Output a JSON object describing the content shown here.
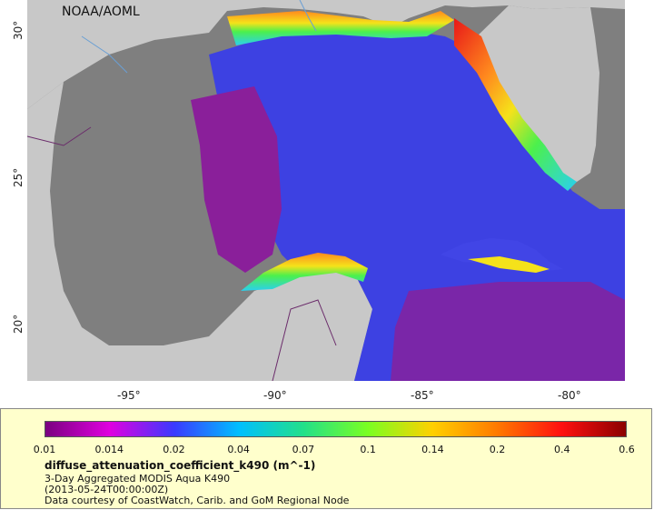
{
  "map": {
    "source_label": "NOAA/AOML",
    "y_ticks": [
      "30°",
      "25°",
      "20°"
    ],
    "x_ticks": [
      "-95°",
      "-90°",
      "-85°",
      "-80°"
    ],
    "colors": {
      "land": "#c8c8c8",
      "no_data_water": "#7f7f7f",
      "deep_ocean_purple": "#8a1f9a",
      "blue": "#3a3ee8",
      "cyan": "#2ad0f0",
      "green": "#4cf04c",
      "yellow": "#f5e21a",
      "orange": "#ff8a1e",
      "red": "#e81818",
      "river": "#6a9fd4",
      "border": "#6b2c6b"
    }
  },
  "legend": {
    "scale_labels": [
      "0.01",
      "0.014",
      "0.02",
      "0.04",
      "0.07",
      "0.1",
      "0.14",
      "0.2",
      "0.4",
      "0.6"
    ],
    "gradient_colors": [
      "#7a0080",
      "#e000e0",
      "#3a3aff",
      "#00bfff",
      "#22e08a",
      "#7aff22",
      "#ffd000",
      "#ff7a00",
      "#ff1010",
      "#8b0000"
    ],
    "title": "diffuse_attenuation_coefficient_k490 (m^-1)",
    "line1": "3-Day Aggregated MODIS Aqua K490",
    "line2": "(2013-05-24T00:00:00Z)",
    "line3": "Data courtesy of CoastWatch, Carib. and GoM Regional Node"
  }
}
